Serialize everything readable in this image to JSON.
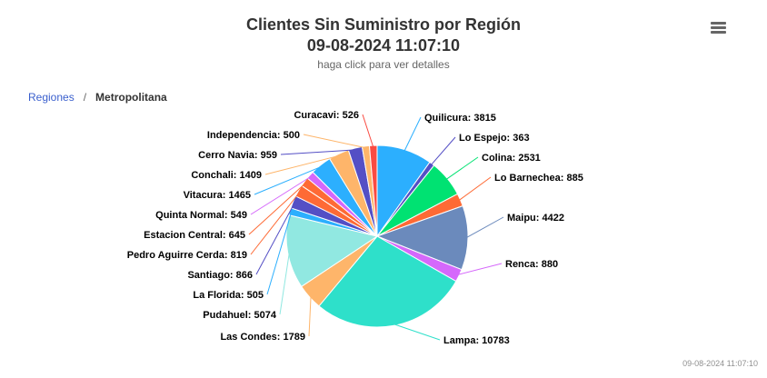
{
  "header": {
    "title_line1": "Clientes Sin Suministro por Región",
    "title_line2": "09-08-2024 11:07:10",
    "subtitle": "haga click para ver detalles"
  },
  "menu": {
    "icon": "hamburger-menu-icon"
  },
  "breadcrumb": {
    "parent": "Regiones",
    "separator": "/",
    "current": "Metropolitana"
  },
  "footer": {
    "timestamp": "09-08-2024 11:07:10"
  },
  "chart_data": {
    "type": "pie",
    "title": "Clientes Sin Suministro por Región",
    "subtitle": "haga click para ver detalles",
    "series": [
      {
        "name": "Quilicura",
        "value": 3815,
        "color": "#2caffe"
      },
      {
        "name": "Lo Espejo",
        "value": 363,
        "color": "#544fc5"
      },
      {
        "name": "Colina",
        "value": 2531,
        "color": "#00e272"
      },
      {
        "name": "Lo Barnechea",
        "value": 885,
        "color": "#fe6a35"
      },
      {
        "name": "Maipu",
        "value": 4422,
        "color": "#6b8abc"
      },
      {
        "name": "Renca",
        "value": 880,
        "color": "#d568fb"
      },
      {
        "name": "Lampa",
        "value": 10783,
        "color": "#2ee0ca"
      },
      {
        "name": "Las Condes",
        "value": 1789,
        "color": "#feb56a"
      },
      {
        "name": "Pudahuel",
        "value": 5074,
        "color": "#91e8e1"
      },
      {
        "name": "La Florida",
        "value": 505,
        "color": "#2caffe"
      },
      {
        "name": "Santiago",
        "value": 866,
        "color": "#544fc5"
      },
      {
        "name": "Pedro Aguirre Cerda",
        "value": 819,
        "color": "#fe6a35"
      },
      {
        "name": "Estacion Central",
        "value": 645,
        "color": "#fe6a35"
      },
      {
        "name": "Quinta Normal",
        "value": 549,
        "color": "#d568fb"
      },
      {
        "name": "Vitacura",
        "value": 1465,
        "color": "#2caffe"
      },
      {
        "name": "Conchali",
        "value": 1409,
        "color": "#feb56a"
      },
      {
        "name": "Cerro Navia",
        "value": 959,
        "color": "#544fc5"
      },
      {
        "name": "Independencia",
        "value": 500,
        "color": "#feb56a"
      },
      {
        "name": "Curacavi",
        "value": 526,
        "color": "#fa4b42"
      }
    ]
  }
}
